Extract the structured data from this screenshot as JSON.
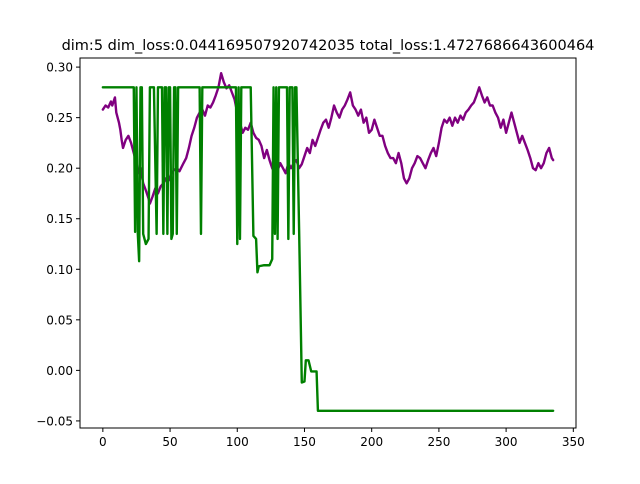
{
  "chart_data": {
    "type": "line",
    "title": "dim:5 dim_loss:0.044169507920742035 total_loss:1.4727686643600464",
    "xlabel": "",
    "ylabel": "",
    "xlim": [
      -17,
      352
    ],
    "ylim": [
      -0.057,
      0.309
    ],
    "xticks": [
      0,
      50,
      100,
      150,
      200,
      250,
      300,
      350
    ],
    "xtick_labels": [
      "0",
      "50",
      "100",
      "150",
      "200",
      "250",
      "300",
      "350"
    ],
    "yticks": [
      -0.05,
      0.0,
      0.05,
      0.1,
      0.15,
      0.2,
      0.25,
      0.3
    ],
    "ytick_labels": [
      "−0.05",
      "0.00",
      "0.05",
      "0.10",
      "0.15",
      "0.20",
      "0.25",
      "0.30"
    ],
    "grid": false,
    "legend": "none",
    "series": [
      {
        "color": "#800080",
        "points": [
          [
            0,
            0.258
          ],
          [
            2,
            0.262
          ],
          [
            4,
            0.26
          ],
          [
            6,
            0.266
          ],
          [
            7,
            0.262
          ],
          [
            9,
            0.27
          ],
          [
            10,
            0.255
          ],
          [
            12,
            0.245
          ],
          [
            13,
            0.238
          ],
          [
            14,
            0.228
          ],
          [
            15,
            0.22
          ],
          [
            17,
            0.228
          ],
          [
            19,
            0.232
          ],
          [
            21,
            0.225
          ],
          [
            23,
            0.215
          ],
          [
            25,
            0.205
          ],
          [
            27,
            0.195
          ],
          [
            28,
            0.2
          ],
          [
            30,
            0.185
          ],
          [
            32,
            0.178
          ],
          [
            34,
            0.17
          ],
          [
            35,
            0.165
          ],
          [
            37,
            0.172
          ],
          [
            39,
            0.18
          ],
          [
            41,
            0.175
          ],
          [
            43,
            0.182
          ],
          [
            45,
            0.185
          ],
          [
            47,
            0.19
          ],
          [
            49,
            0.188
          ],
          [
            51,
            0.195
          ],
          [
            53,
            0.198
          ],
          [
            55,
            0.2
          ],
          [
            57,
            0.197
          ],
          [
            60,
            0.205
          ],
          [
            62,
            0.21
          ],
          [
            64,
            0.22
          ],
          [
            66,
            0.232
          ],
          [
            68,
            0.24
          ],
          [
            70,
            0.25
          ],
          [
            72,
            0.255
          ],
          [
            74,
            0.258
          ],
          [
            76,
            0.252
          ],
          [
            78,
            0.262
          ],
          [
            80,
            0.26
          ],
          [
            82,
            0.265
          ],
          [
            84,
            0.272
          ],
          [
            86,
            0.28
          ],
          [
            88,
            0.294
          ],
          [
            90,
            0.285
          ],
          [
            92,
            0.279
          ],
          [
            94,
            0.282
          ],
          [
            96,
            0.275
          ],
          [
            98,
            0.268
          ],
          [
            100,
            0.255
          ],
          [
            102,
            0.245
          ],
          [
            104,
            0.235
          ],
          [
            106,
            0.24
          ],
          [
            108,
            0.238
          ],
          [
            110,
            0.245
          ],
          [
            112,
            0.235
          ],
          [
            114,
            0.23
          ],
          [
            116,
            0.228
          ],
          [
            118,
            0.222
          ],
          [
            120,
            0.21
          ],
          [
            122,
            0.218
          ],
          [
            124,
            0.208
          ],
          [
            126,
            0.2
          ],
          [
            128,
            0.195
          ],
          [
            130,
            0.198
          ],
          [
            132,
            0.205
          ],
          [
            134,
            0.2
          ],
          [
            136,
            0.195
          ],
          [
            138,
            0.205
          ],
          [
            140,
            0.2
          ],
          [
            142,
            0.205
          ],
          [
            144,
            0.208
          ],
          [
            146,
            0.2
          ],
          [
            148,
            0.204
          ],
          [
            150,
            0.212
          ],
          [
            152,
            0.22
          ],
          [
            154,
            0.215
          ],
          [
            156,
            0.228
          ],
          [
            158,
            0.222
          ],
          [
            160,
            0.23
          ],
          [
            162,
            0.238
          ],
          [
            164,
            0.245
          ],
          [
            166,
            0.248
          ],
          [
            168,
            0.24
          ],
          [
            170,
            0.25
          ],
          [
            172,
            0.262
          ],
          [
            174,
            0.255
          ],
          [
            176,
            0.25
          ],
          [
            178,
            0.258
          ],
          [
            180,
            0.262
          ],
          [
            182,
            0.268
          ],
          [
            184,
            0.275
          ],
          [
            186,
            0.262
          ],
          [
            188,
            0.258
          ],
          [
            190,
            0.252
          ],
          [
            192,
            0.258
          ],
          [
            194,
            0.245
          ],
          [
            196,
            0.25
          ],
          [
            198,
            0.235
          ],
          [
            200,
            0.238
          ],
          [
            202,
            0.248
          ],
          [
            204,
            0.24
          ],
          [
            206,
            0.232
          ],
          [
            208,
            0.232
          ],
          [
            210,
            0.222
          ],
          [
            212,
            0.215
          ],
          [
            214,
            0.21
          ],
          [
            216,
            0.21
          ],
          [
            218,
            0.205
          ],
          [
            220,
            0.215
          ],
          [
            222,
            0.205
          ],
          [
            224,
            0.19
          ],
          [
            226,
            0.185
          ],
          [
            228,
            0.19
          ],
          [
            230,
            0.2
          ],
          [
            232,
            0.205
          ],
          [
            234,
            0.212
          ],
          [
            236,
            0.21
          ],
          [
            238,
            0.205
          ],
          [
            240,
            0.2
          ],
          [
            242,
            0.208
          ],
          [
            244,
            0.215
          ],
          [
            246,
            0.22
          ],
          [
            248,
            0.212
          ],
          [
            250,
            0.225
          ],
          [
            252,
            0.24
          ],
          [
            254,
            0.248
          ],
          [
            256,
            0.245
          ],
          [
            258,
            0.25
          ],
          [
            260,
            0.242
          ],
          [
            262,
            0.25
          ],
          [
            264,
            0.245
          ],
          [
            266,
            0.252
          ],
          [
            268,
            0.248
          ],
          [
            270,
            0.255
          ],
          [
            272,
            0.258
          ],
          [
            274,
            0.262
          ],
          [
            276,
            0.265
          ],
          [
            278,
            0.272
          ],
          [
            280,
            0.28
          ],
          [
            282,
            0.272
          ],
          [
            284,
            0.265
          ],
          [
            286,
            0.27
          ],
          [
            288,
            0.262
          ],
          [
            290,
            0.262
          ],
          [
            292,
            0.255
          ],
          [
            294,
            0.25
          ],
          [
            296,
            0.24
          ],
          [
            298,
            0.248
          ],
          [
            300,
            0.235
          ],
          [
            302,
            0.245
          ],
          [
            304,
            0.255
          ],
          [
            306,
            0.245
          ],
          [
            308,
            0.235
          ],
          [
            310,
            0.225
          ],
          [
            312,
            0.232
          ],
          [
            314,
            0.225
          ],
          [
            316,
            0.218
          ],
          [
            318,
            0.21
          ],
          [
            320,
            0.2
          ],
          [
            322,
            0.198
          ],
          [
            324,
            0.205
          ],
          [
            326,
            0.2
          ],
          [
            328,
            0.205
          ],
          [
            330,
            0.215
          ],
          [
            332,
            0.22
          ],
          [
            334,
            0.21
          ],
          [
            335,
            0.208
          ]
        ]
      },
      {
        "color": "#008000",
        "points": [
          [
            0,
            0.28
          ],
          [
            10,
            0.28
          ],
          [
            20,
            0.28
          ],
          [
            23,
            0.28
          ],
          [
            24,
            0.137
          ],
          [
            25,
            0.28
          ],
          [
            26,
            0.135
          ],
          [
            27,
            0.108
          ],
          [
            28,
            0.28
          ],
          [
            29,
            0.28
          ],
          [
            30,
            0.135
          ],
          [
            32,
            0.125
          ],
          [
            34,
            0.13
          ],
          [
            35,
            0.28
          ],
          [
            38,
            0.28
          ],
          [
            40,
            0.135
          ],
          [
            41,
            0.28
          ],
          [
            43,
            0.28
          ],
          [
            44,
            0.28
          ],
          [
            45,
            0.135
          ],
          [
            46,
            0.28
          ],
          [
            47,
            0.28
          ],
          [
            48,
            0.135
          ],
          [
            49,
            0.28
          ],
          [
            50,
            0.28
          ],
          [
            51,
            0.13
          ],
          [
            52,
            0.135
          ],
          [
            53,
            0.28
          ],
          [
            54,
            0.28
          ],
          [
            55,
            0.135
          ],
          [
            56,
            0.28
          ],
          [
            60,
            0.28
          ],
          [
            65,
            0.28
          ],
          [
            70,
            0.28
          ],
          [
            72,
            0.28
          ],
          [
            73,
            0.135
          ],
          [
            74,
            0.28
          ],
          [
            80,
            0.28
          ],
          [
            90,
            0.28
          ],
          [
            99,
            0.28
          ],
          [
            100,
            0.125
          ],
          [
            101,
            0.28
          ],
          [
            102,
            0.13
          ],
          [
            103,
            0.28
          ],
          [
            106,
            0.28
          ],
          [
            110,
            0.28
          ],
          [
            112,
            0.133
          ],
          [
            114,
            0.13
          ],
          [
            115,
            0.097
          ],
          [
            116,
            0.103
          ],
          [
            120,
            0.104
          ],
          [
            124,
            0.104
          ],
          [
            126,
            0.11
          ],
          [
            127,
            0.28
          ],
          [
            128,
            0.135
          ],
          [
            129,
            0.28
          ],
          [
            130,
            0.13
          ],
          [
            131,
            0.28
          ],
          [
            134,
            0.28
          ],
          [
            137,
            0.28
          ],
          [
            138,
            0.13
          ],
          [
            139,
            0.28
          ],
          [
            141,
            0.28
          ],
          [
            142,
            0.135
          ],
          [
            143,
            0.28
          ],
          [
            144,
            0.28
          ],
          [
            146,
            0.14
          ],
          [
            148,
            -0.012
          ],
          [
            150,
            -0.011
          ],
          [
            151,
            0.01
          ],
          [
            153,
            0.01
          ],
          [
            155,
            -0.001
          ],
          [
            159,
            -0.001
          ],
          [
            160,
            -0.04
          ],
          [
            170,
            -0.04
          ],
          [
            200,
            -0.04
          ],
          [
            250,
            -0.04
          ],
          [
            300,
            -0.04
          ],
          [
            335,
            -0.04
          ]
        ]
      }
    ]
  }
}
